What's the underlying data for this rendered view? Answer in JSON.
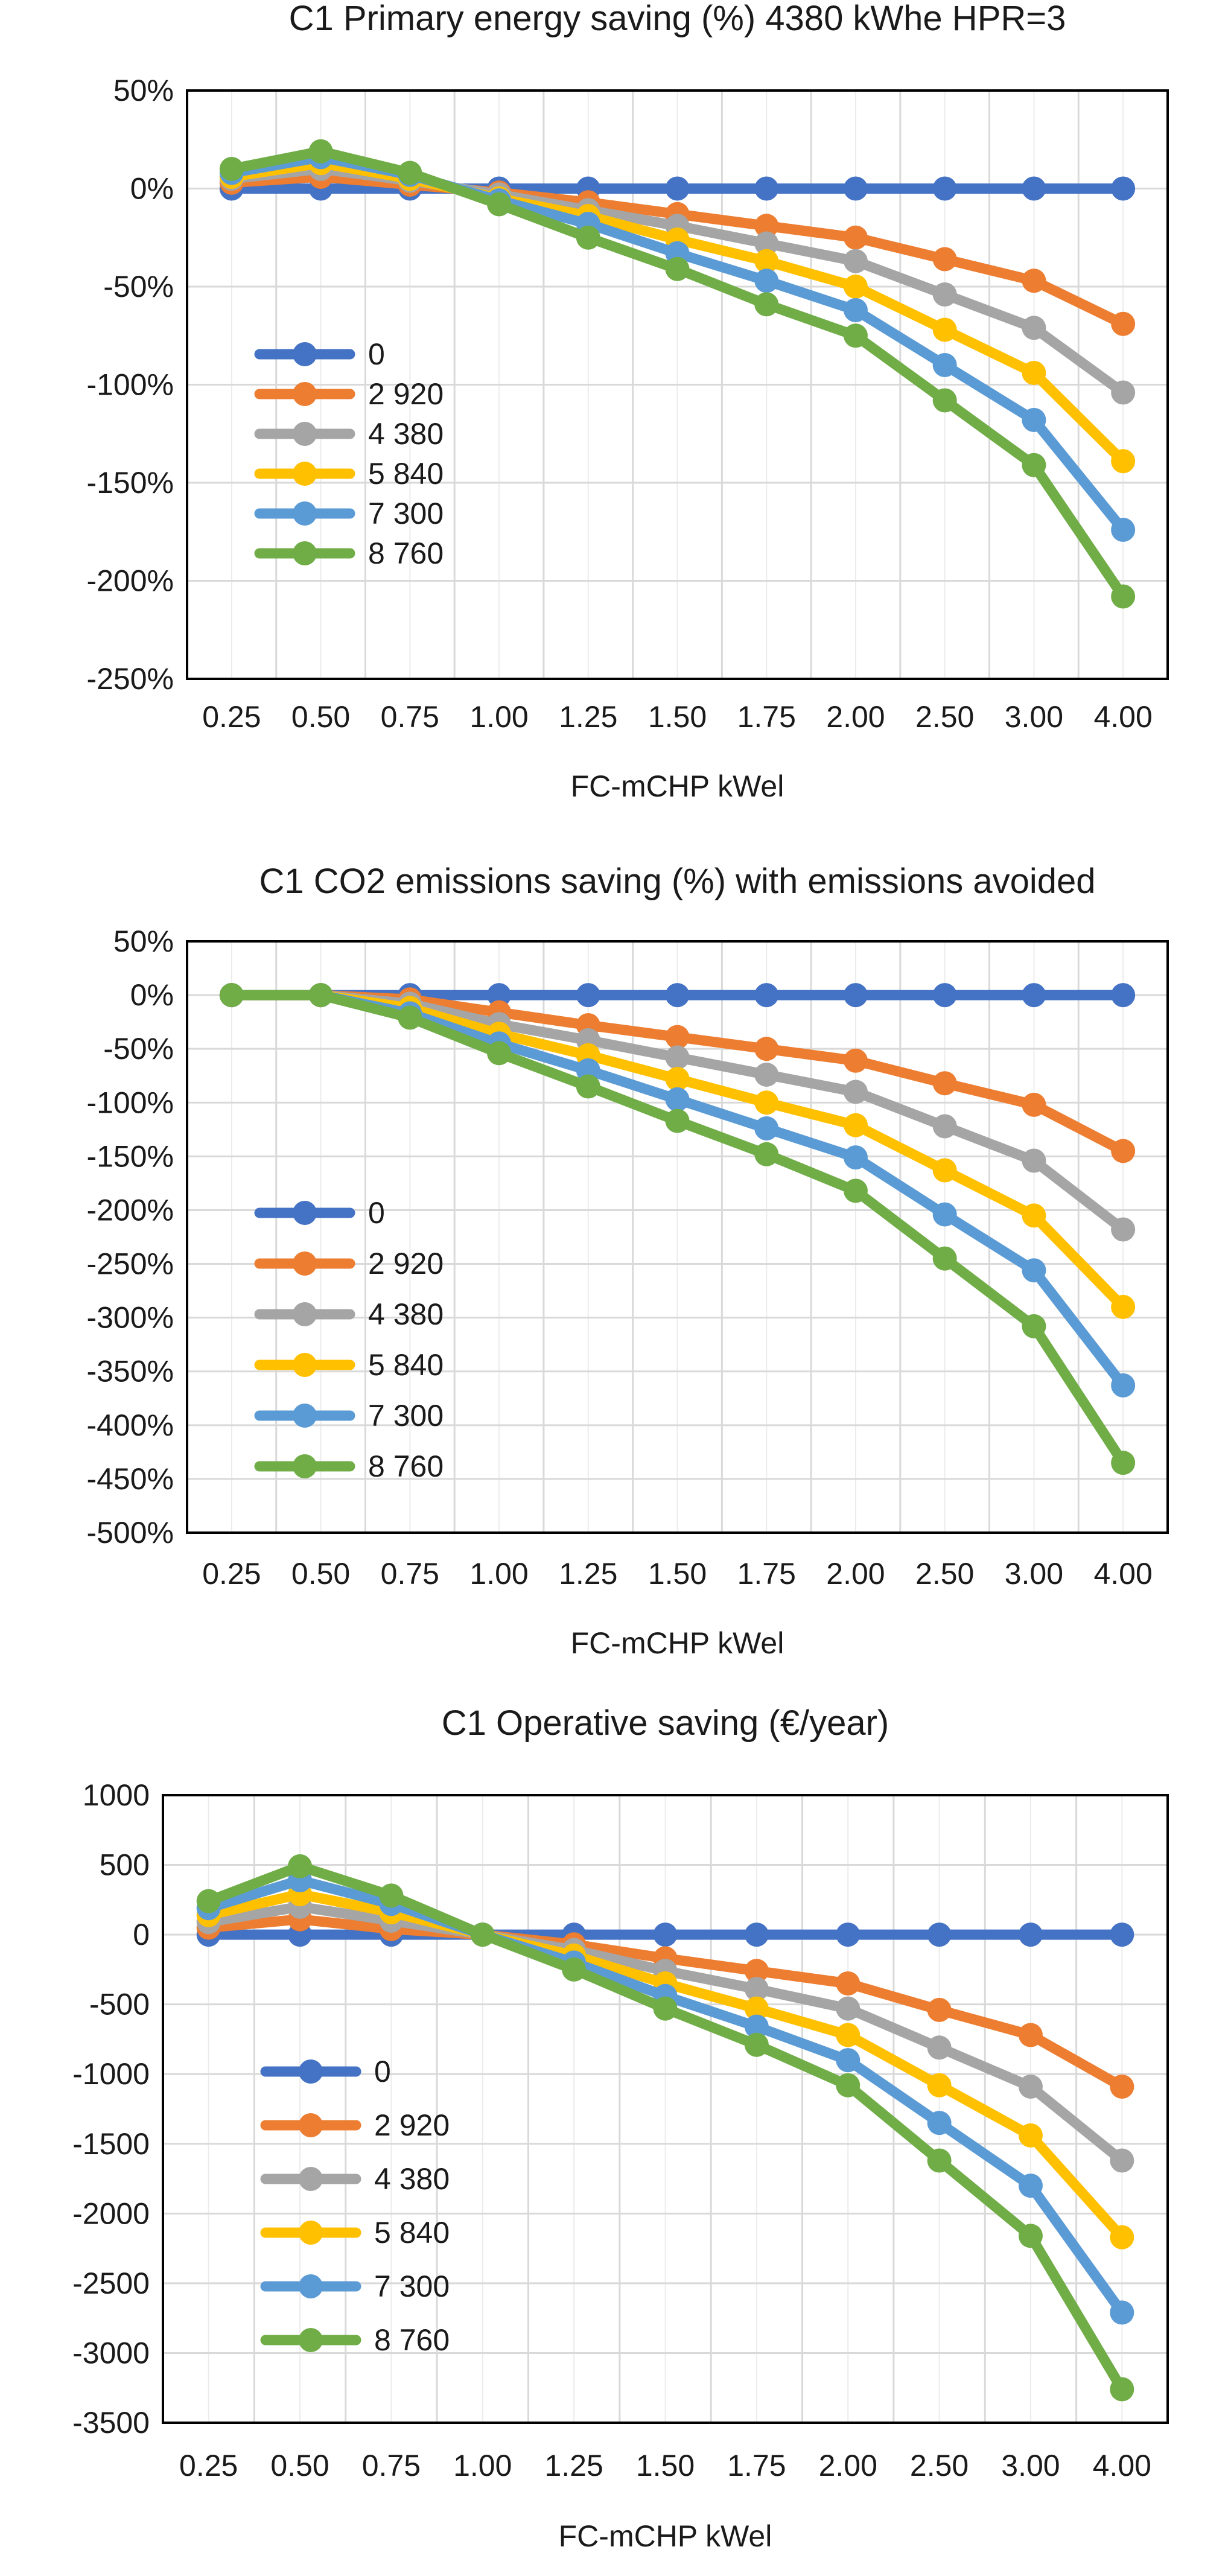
{
  "chart_data": [
    {
      "type": "line",
      "title": "C1 Primary energy saving (%) 4380 kWhe HPR=3",
      "xlabel": "FC-mCHP kWel",
      "ylabel": "",
      "categories": [
        "0.25",
        "0.50",
        "0.75",
        "1.00",
        "1.25",
        "1.50",
        "1.75",
        "2.00",
        "2.50",
        "3.00",
        "4.00"
      ],
      "yticks": [
        "50%",
        "0%",
        "-50%",
        "-100%",
        "-150%",
        "-200%",
        "-250%"
      ],
      "ylim": [
        -250,
        50
      ],
      "ystep": 50,
      "yunit": "%",
      "grid": true,
      "legend_position": "left-inside",
      "series": [
        {
          "name": "0",
          "color": "#4472C4",
          "values": [
            0,
            0,
            0,
            0,
            0,
            0,
            0,
            0,
            0,
            0,
            0
          ]
        },
        {
          "name": "2 920",
          "color": "#ED7D31",
          "values": [
            3,
            6,
            2,
            -2,
            -7,
            -13,
            -19,
            -25,
            -36,
            -47,
            -69
          ]
        },
        {
          "name": "4 380",
          "color": "#A5A5A5",
          "values": [
            5,
            10,
            4,
            -3,
            -11,
            -19,
            -28,
            -37,
            -54,
            -71,
            -104
          ]
        },
        {
          "name": "5 840",
          "color": "#FFC000",
          "values": [
            6,
            13,
            5,
            -5,
            -14,
            -26,
            -37,
            -50,
            -72,
            -94,
            -139
          ]
        },
        {
          "name": "7 300",
          "color": "#5B9BD5",
          "values": [
            8,
            16,
            7,
            -6,
            -18,
            -33,
            -47,
            -62,
            -90,
            -118,
            -174
          ]
        },
        {
          "name": "8 760",
          "color": "#70AD47",
          "values": [
            10,
            19,
            8,
            -8,
            -25,
            -41,
            -59,
            -75,
            -108,
            -141,
            -208
          ]
        }
      ]
    },
    {
      "type": "line",
      "title": "C1 CO2 emissions saving (%) with emissions avoided",
      "xlabel": "FC-mCHP kWel",
      "ylabel": "",
      "categories": [
        "0.25",
        "0.50",
        "0.75",
        "1.00",
        "1.25",
        "1.50",
        "1.75",
        "2.00",
        "2.50",
        "3.00",
        "4.00"
      ],
      "yticks": [
        "50%",
        "0%",
        "-50%",
        "-100%",
        "-150%",
        "-200%",
        "-250%",
        "-300%",
        "-350%",
        "-400%",
        "-450%",
        "-500%"
      ],
      "ylim": [
        -500,
        50
      ],
      "ystep": 50,
      "yunit": "%",
      "grid": true,
      "legend_position": "left-inside",
      "series": [
        {
          "name": "0",
          "color": "#4472C4",
          "values": [
            0,
            0,
            0,
            0,
            0,
            0,
            0,
            0,
            0,
            0,
            0
          ]
        },
        {
          "name": "2 920",
          "color": "#ED7D31",
          "values": [
            0,
            0,
            -4,
            -16,
            -28,
            -39,
            -50,
            -61,
            -82,
            -102,
            -145
          ]
        },
        {
          "name": "4 380",
          "color": "#A5A5A5",
          "values": [
            0,
            0,
            -8,
            -27,
            -42,
            -58,
            -74,
            -90,
            -122,
            -154,
            -218
          ]
        },
        {
          "name": "5 840",
          "color": "#FFC000",
          "values": [
            0,
            0,
            -12,
            -36,
            -56,
            -78,
            -100,
            -121,
            -163,
            -205,
            -290
          ]
        },
        {
          "name": "7 300",
          "color": "#5B9BD5",
          "values": [
            0,
            0,
            -17,
            -45,
            -70,
            -97,
            -124,
            -151,
            -204,
            -256,
            -363
          ]
        },
        {
          "name": "8 760",
          "color": "#70AD47",
          "values": [
            0,
            0,
            -21,
            -54,
            -85,
            -117,
            -148,
            -182,
            -245,
            -308,
            -435
          ]
        }
      ]
    },
    {
      "type": "line",
      "title": "C1 Operative saving (€/year)",
      "xlabel": "FC-mCHP kWel",
      "ylabel": "",
      "categories": [
        "0.25",
        "0.50",
        "0.75",
        "1.00",
        "1.25",
        "1.50",
        "1.75",
        "2.00",
        "2.50",
        "3.00",
        "4.00"
      ],
      "yticks": [
        "1000",
        "500",
        "0",
        "-500",
        "-1000",
        "-1500",
        "-2000",
        "-2500",
        "-3000",
        "-3500"
      ],
      "ylim": [
        -3500,
        1000
      ],
      "ystep": 500,
      "yunit": "",
      "grid": true,
      "legend_position": "left-inside",
      "series": [
        {
          "name": "0",
          "color": "#4472C4",
          "values": [
            0,
            0,
            0,
            0,
            0,
            0,
            0,
            0,
            0,
            0,
            0
          ]
        },
        {
          "name": "2 920",
          "color": "#ED7D31",
          "values": [
            50,
            110,
            40,
            0,
            -70,
            -170,
            -260,
            -350,
            -540,
            -720,
            -1090
          ]
        },
        {
          "name": "4 380",
          "color": "#A5A5A5",
          "values": [
            90,
            200,
            100,
            0,
            -110,
            -260,
            -390,
            -530,
            -810,
            -1090,
            -1620
          ]
        },
        {
          "name": "5 840",
          "color": "#FFC000",
          "values": [
            140,
            290,
            160,
            0,
            -150,
            -350,
            -530,
            -720,
            -1080,
            -1440,
            -2170
          ]
        },
        {
          "name": "7 300",
          "color": "#5B9BD5",
          "values": [
            190,
            390,
            220,
            0,
            -200,
            -440,
            -660,
            -900,
            -1350,
            -1800,
            -2710
          ]
        },
        {
          "name": "8 760",
          "color": "#70AD47",
          "values": [
            240,
            490,
            280,
            0,
            -250,
            -530,
            -790,
            -1080,
            -1620,
            -2160,
            -3260
          ]
        }
      ]
    }
  ]
}
